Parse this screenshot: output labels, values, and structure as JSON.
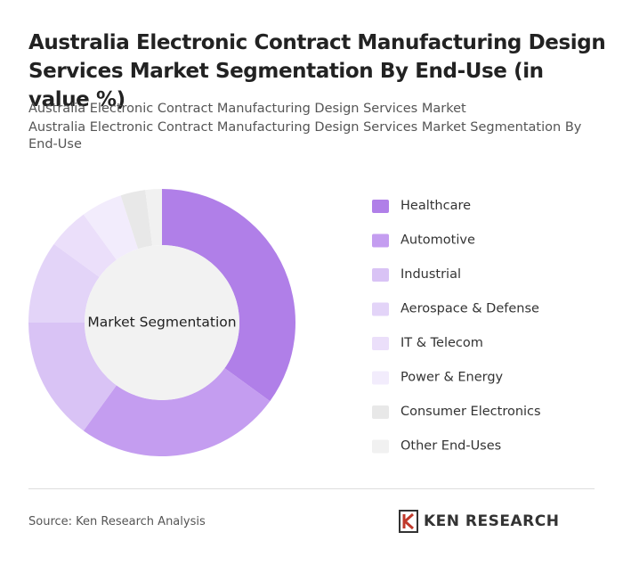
{
  "title": "Australia Electronic Contract Manufacturing Design Services Market Segmentation By End-Use (in value %)",
  "subtitle_lines": [
    "Australia Electronic Contract Manufacturing Design Services Market",
    "Australia Electronic Contract Manufacturing Design Services Market Segmentation By End-Use"
  ],
  "chart_data": {
    "type": "pie",
    "center_label": "Market Segmentation",
    "categories": [
      "Healthcare",
      "Automotive",
      "Industrial",
      "Aerospace & Defense",
      "IT & Telecom",
      "Power & Energy",
      "Consumer Electronics",
      "Other End-Uses"
    ],
    "values": [
      35,
      25,
      15,
      10,
      5,
      5,
      3,
      2
    ],
    "colors": [
      "#b07fe8",
      "#c49df0",
      "#d9c3f5",
      "#e3d4f8",
      "#ebdffa",
      "#f2ecfc",
      "#e8e8e8",
      "#f1f1f1"
    ]
  },
  "source": "Source: Ken Research Analysis",
  "logo": "KEN RESEARCH"
}
